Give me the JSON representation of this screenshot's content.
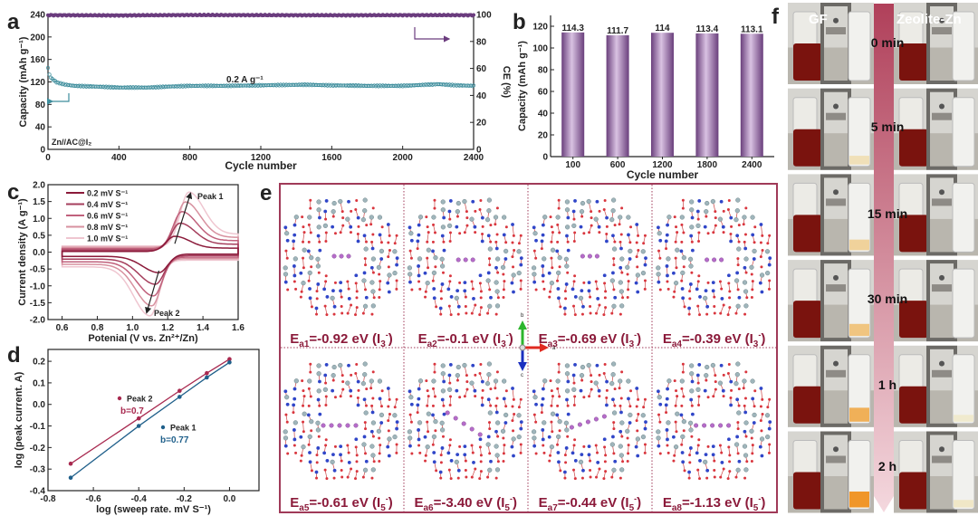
{
  "panel_labels": {
    "a": "a",
    "b": "b",
    "c": "c",
    "d": "d",
    "e": "e",
    "f": "f"
  },
  "colors": {
    "capacity": "#3d8d9c",
    "ce": "#6b3c7e",
    "bar": "#8a5e9a",
    "peak2": "#a8294f",
    "peak1": "#1f5f8a",
    "frame": "#a03a58",
    "energy_text": "#8b1a3a"
  },
  "chart_data": [
    {
      "id": "a",
      "type": "scatter",
      "xlabel": "Cycle number",
      "ylabel": "Capacity (mAh g⁻¹)",
      "ylabel_right": "CE (%)",
      "xlim": [
        0,
        2400
      ],
      "ylim": [
        0,
        240
      ],
      "ylim_right": [
        0,
        100
      ],
      "xticks": [
        "0",
        "400",
        "800",
        "1200",
        "1600",
        "2000",
        "2400"
      ],
      "yticks": [
        "0",
        "40",
        "80",
        "120",
        "160",
        "200",
        "240"
      ],
      "yticks_right": [
        "0",
        "20",
        "40",
        "60",
        "80",
        "100"
      ],
      "annotations": {
        "current": "0.2 A g⁻¹",
        "cell": "Zn//AC@I₂"
      },
      "series": [
        {
          "name": "Capacity",
          "axis": "left",
          "x": [
            0,
            10,
            25,
            50,
            100,
            150,
            250,
            400,
            560,
            700,
            800,
            1000,
            1200,
            1450,
            1600,
            1800,
            2000,
            2200,
            2300,
            2400
          ],
          "y": [
            145,
            130,
            125,
            119,
            115,
            113,
            112,
            110,
            110,
            112,
            113,
            113,
            114,
            115,
            114,
            113,
            113,
            116,
            114,
            113
          ]
        },
        {
          "name": "CE",
          "axis": "right",
          "x": [
            0,
            400,
            800,
            1200,
            1600,
            2000,
            2400
          ],
          "y": [
            99.5,
            99.3,
            99.6,
            99.5,
            99.4,
            99.5,
            99.5
          ]
        }
      ]
    },
    {
      "id": "b",
      "type": "bar",
      "xlabel": "Cycle number",
      "ylabel": "Capacity (mAh g⁻¹)",
      "ylim": [
        0,
        130
      ],
      "yticks": [
        "0",
        "20",
        "40",
        "60",
        "80",
        "100",
        "120"
      ],
      "categories": [
        "100",
        "600",
        "1200",
        "1800",
        "2400"
      ],
      "values": [
        114.3,
        111.7,
        114,
        113.4,
        113.1
      ],
      "value_labels": [
        "114.3",
        "111.7",
        "114",
        "113.4",
        "113.1"
      ]
    },
    {
      "id": "c",
      "type": "line",
      "xlabel": "Potenial (V vs. Zn²⁺/Zn)",
      "ylabel": "Current density (A g⁻¹)",
      "xlim": [
        0.52,
        1.6
      ],
      "ylim": [
        -2.0,
        2.0
      ],
      "xticks": [
        "0.6",
        "0.8",
        "1.0",
        "1.2",
        "1.4",
        "1.6"
      ],
      "yticks": [
        "-2.0",
        "-1.5",
        "-1.0",
        "-0.5",
        "0.0",
        "0.5",
        "1.0",
        "1.5",
        "2.0"
      ],
      "legend_position": "top-left",
      "annotations": {
        "peak1": "Peak 1",
        "peak2": "Peak 2"
      },
      "series": [
        {
          "name": "0.2 mV S⁻¹",
          "color": "#8b1a3a",
          "ox_peak": [
            1.24,
            0.45
          ],
          "red_peak": [
            1.15,
            -0.55
          ]
        },
        {
          "name": "0.4 mV S⁻¹",
          "color": "#a53e5c",
          "ox_peak": [
            1.27,
            0.8
          ],
          "red_peak": [
            1.13,
            -0.85
          ]
        },
        {
          "name": "0.6 mV S⁻¹",
          "color": "#c0617c",
          "ox_peak": [
            1.28,
            1.1
          ],
          "red_peak": [
            1.12,
            -1.15
          ]
        },
        {
          "name": "0.8 mV S⁻¹",
          "color": "#d7919f",
          "ox_peak": [
            1.3,
            1.35
          ],
          "red_peak": [
            1.11,
            -1.4
          ]
        },
        {
          "name": "1.0 mV S⁻¹",
          "color": "#efc6d0",
          "ox_peak": [
            1.32,
            1.6
          ],
          "red_peak": [
            1.1,
            -1.65
          ]
        }
      ]
    },
    {
      "id": "d",
      "type": "scatter",
      "xlabel": "log (sweep rate. mV S⁻¹)",
      "ylabel": "log (peak current. A)",
      "xlim": [
        -0.8,
        0.13
      ],
      "ylim": [
        -0.4,
        0.255
      ],
      "xticks": [
        "-0.8",
        "-0.6",
        "-0.4",
        "-0.2",
        "0.0"
      ],
      "yticks": [
        "-0.4",
        "-0.3",
        "-0.2",
        "-0.1",
        "0.0",
        "0.1",
        "0.2"
      ],
      "series": [
        {
          "name": "Peak 2",
          "fit_label": "b=0.7",
          "color": "#a8294f",
          "x": [
            -0.7,
            -0.4,
            -0.22,
            -0.1,
            0.0
          ],
          "y": [
            -0.275,
            -0.065,
            0.063,
            0.145,
            0.21
          ]
        },
        {
          "name": "Peak 1",
          "fit_label": "b=0.77",
          "color": "#1f5f8a",
          "x": [
            -0.7,
            -0.4,
            -0.22,
            -0.1,
            0.0
          ],
          "y": [
            -0.34,
            -0.1,
            0.035,
            0.125,
            0.195
          ]
        }
      ]
    }
  ],
  "panel_e": {
    "axes": {
      "a": "a",
      "b": "b",
      "c": "c"
    },
    "cells": [
      {
        "E": "E",
        "sub": "a1",
        "val": "=-0.92 eV (I",
        "isub": "3",
        "isup": "-",
        "close": ")",
        "iodine": 3
      },
      {
        "E": "E",
        "sub": "a2",
        "val": "=-0.1 eV (I",
        "isub": "3",
        "isup": "-",
        "close": ")",
        "iodine": 3
      },
      {
        "E": "E",
        "sub": "a3",
        "val": "=-0.69 eV (I",
        "isub": "3",
        "isup": "-",
        "close": ")",
        "iodine": 3
      },
      {
        "E": "E",
        "sub": "a4",
        "val": "=-0.39 eV (I",
        "isub": "3",
        "isup": "-",
        "close": ")",
        "iodine": 3
      },
      {
        "E": "E",
        "sub": "a5",
        "val": "=-0.61 eV (I",
        "isub": "5",
        "isup": "-",
        "close": ")",
        "iodine": 5
      },
      {
        "E": "E",
        "sub": "a6",
        "val": "=-3.40 eV (I",
        "isub": "5",
        "isup": "-",
        "close": ")",
        "iodine": 5
      },
      {
        "E": "E",
        "sub": "a7",
        "val": "=-0.44 eV (I",
        "isub": "5",
        "isup": "-",
        "close": ")",
        "iodine": 5
      },
      {
        "E": "E",
        "sub": "a8",
        "val": "=-1.13 eV (I",
        "isub": "5",
        "isup": "-",
        "close": ")",
        "iodine": 5
      }
    ]
  },
  "panel_f": {
    "left_label": "GF",
    "right_label": "Zeolite-Zn",
    "times": [
      "0 min",
      "5 min",
      "15 min",
      "30 min",
      "1 h",
      "2 h"
    ],
    "gf_permeation": [
      0.0,
      0.25,
      0.45,
      0.6,
      0.8,
      1.0
    ],
    "zeolite_permeation": [
      0.0,
      0.0,
      0.0,
      0.0,
      0.05,
      0.12
    ]
  }
}
